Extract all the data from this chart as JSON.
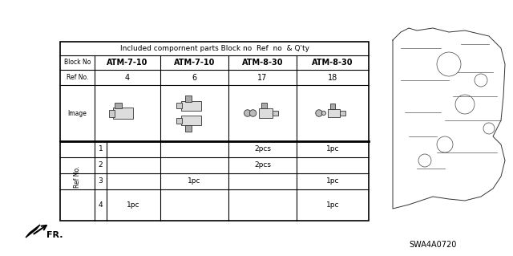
{
  "title": "Included compornent parts Block no  Ref  no  & Q'ty",
  "block_no_label": "Block No",
  "ref_no_label": "Ref No.",
  "image_label": "Image",
  "ref_no_side_label": "Ref No.",
  "block_nos": [
    "ATM-7-10",
    "ATM-7-10",
    "ATM-8-30",
    "ATM-8-30"
  ],
  "ref_nos": [
    "4",
    "6",
    "17",
    "18"
  ],
  "table_data": [
    [
      "1",
      "",
      "",
      "2pcs",
      "1pc"
    ],
    [
      "2",
      "",
      "",
      "2pcs",
      ""
    ],
    [
      "3",
      "",
      "1pc",
      "",
      "1pc"
    ],
    [
      "4",
      "1pc",
      "",
      "",
      "1pc"
    ]
  ],
  "part_code": "SWA4A0720",
  "bg_color": "#ffffff",
  "line_color": "#000000",
  "header_bg": "#ffffff",
  "text_color": "#000000"
}
